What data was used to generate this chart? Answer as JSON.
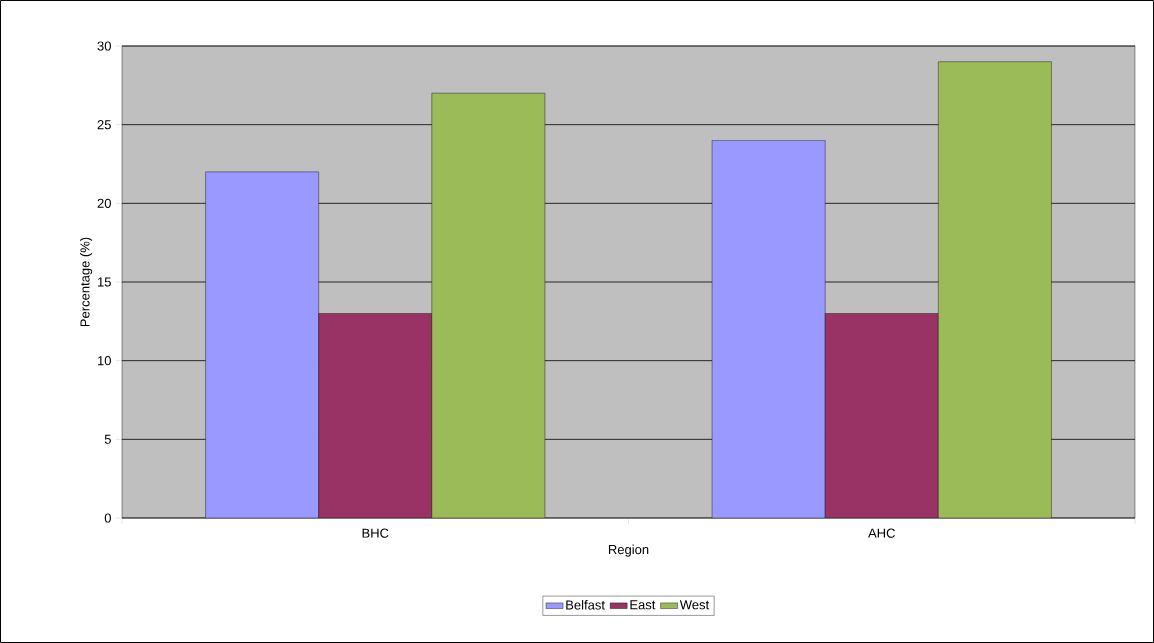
{
  "chart_data": {
    "type": "bar",
    "xlabel": "Region",
    "ylabel": "Percentage (%)",
    "categories": [
      "BHC",
      "AHC"
    ],
    "series": [
      {
        "name": "Belfast",
        "color": "#9999ff",
        "values": [
          22,
          24
        ]
      },
      {
        "name": "East",
        "color": "#993366",
        "values": [
          13,
          13
        ]
      },
      {
        "name": "West",
        "color": "#9bbb59",
        "values": [
          27,
          29
        ]
      }
    ],
    "ylim": [
      0,
      30
    ],
    "yticks": [
      0,
      5,
      10,
      15,
      20,
      25,
      30
    ],
    "grid": "y",
    "legend": "bottom"
  }
}
